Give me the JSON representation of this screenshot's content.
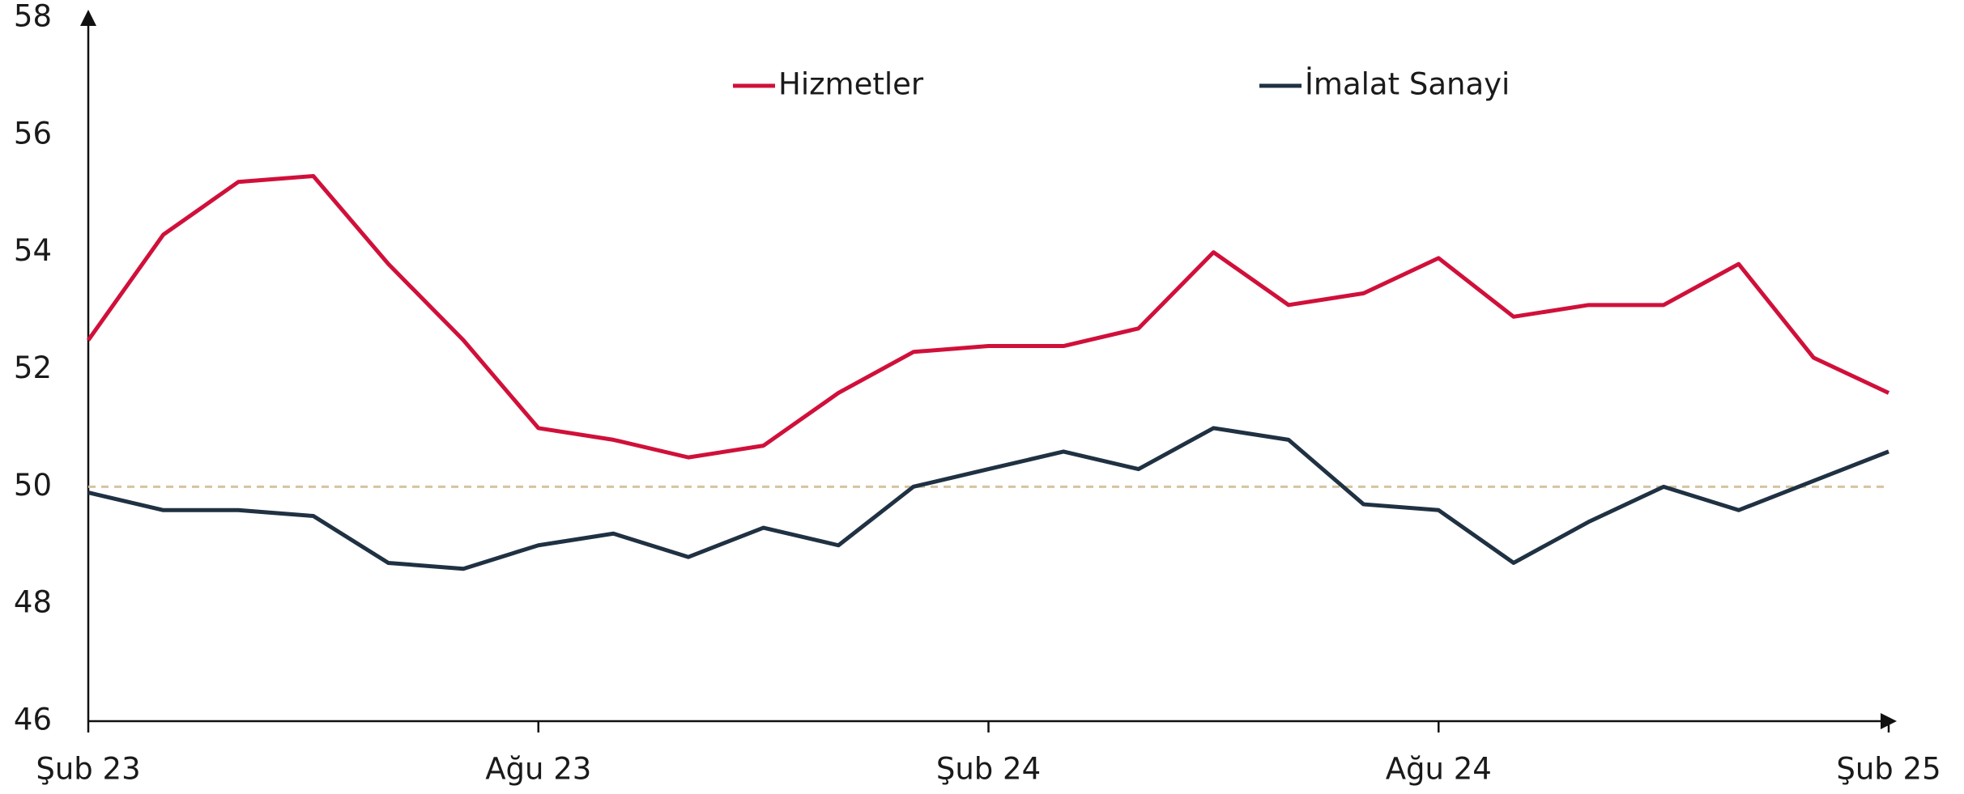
{
  "chart_data": {
    "type": "line",
    "categories": [
      "Şub 23",
      null,
      null,
      null,
      null,
      null,
      "Ağu 23",
      null,
      null,
      null,
      null,
      null,
      "Şub 24",
      null,
      null,
      null,
      null,
      null,
      "Ağu 24",
      null,
      null,
      null,
      null,
      null,
      "Şub 25"
    ],
    "series": [
      {
        "name": "Hizmetler",
        "color": "#d0103a",
        "values": [
          52.5,
          54.3,
          55.2,
          55.3,
          53.8,
          52.5,
          51.0,
          50.8,
          50.5,
          50.7,
          51.6,
          52.3,
          52.4,
          52.4,
          52.7,
          54.0,
          53.1,
          53.3,
          53.9,
          52.9,
          53.1,
          53.1,
          53.8,
          52.2,
          51.6
        ]
      },
      {
        "name": "İmalat Sanayi",
        "color": "#1f3142",
        "values": [
          49.9,
          49.6,
          49.6,
          49.5,
          48.7,
          48.6,
          49.0,
          49.2,
          48.8,
          49.3,
          49.0,
          50.0,
          50.3,
          50.6,
          50.3,
          51.0,
          50.8,
          49.7,
          49.6,
          48.7,
          49.4,
          50.0,
          49.6,
          50.1,
          50.6
        ]
      }
    ],
    "reference_line": 50,
    "reference_color": "#d4c4a0",
    "ylim": [
      46,
      58
    ],
    "yticks": [
      46,
      48,
      50,
      52,
      54,
      56,
      58
    ],
    "grid": false
  }
}
